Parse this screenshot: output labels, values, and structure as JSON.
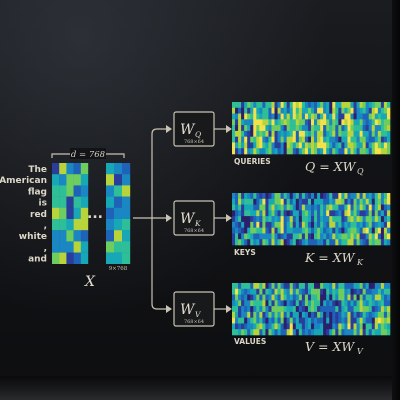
{
  "input_matrix": {
    "tokens": [
      "The",
      "American",
      "flag",
      "is",
      "red",
      ",",
      "white",
      ",",
      "and"
    ],
    "dim_label": "d = 768",
    "ellipsis": "...",
    "shape_label": "9×768",
    "name": "X"
  },
  "weights": [
    {
      "id": "q",
      "symbol": "W",
      "sub": "Q",
      "dims": "768×64"
    },
    {
      "id": "k",
      "symbol": "W",
      "sub": "K",
      "dims": "768×64"
    },
    {
      "id": "v",
      "symbol": "W",
      "sub": "V",
      "dims": "768×64"
    }
  ],
  "outputs": [
    {
      "id": "q",
      "label": "QUERIES",
      "lhs": "Q = XW",
      "sub": "Q"
    },
    {
      "id": "k",
      "label": "KEYS",
      "lhs": "K = XW",
      "sub": "K"
    },
    {
      "id": "v",
      "label": "VALUES",
      "lhs": "V = XW",
      "sub": "V"
    }
  ],
  "colors": {
    "background": "#0b0c0e",
    "annotation": "#d8d2c4",
    "heatmap_palette": [
      "#2c1f6e",
      "#2b3d9a",
      "#1f63b8",
      "#1a86c2",
      "#17a7b6",
      "#2fbf98",
      "#6dcd5f",
      "#b9d43a",
      "#f3e24a"
    ]
  }
}
